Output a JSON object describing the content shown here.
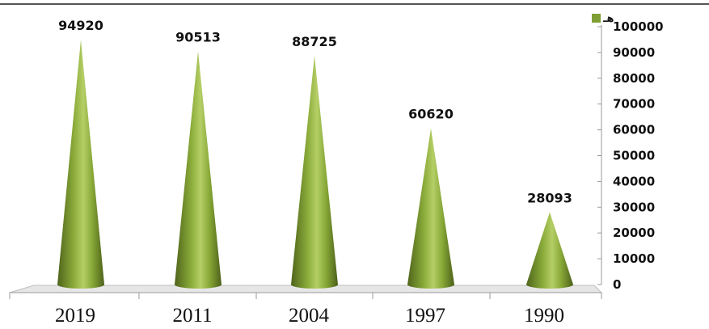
{
  "chart_data": {
    "type": "bar",
    "categories": [
      "2019",
      "2011",
      "2004",
      "1997",
      "1990"
    ],
    "values": [
      94920,
      90513,
      88725,
      60620,
      28093
    ],
    "data_labels": [
      "94920",
      "90513",
      "88725",
      "60620",
      "28093"
    ],
    "ylim": [
      0,
      100000
    ],
    "yticks": [
      "0",
      "10000",
      "20000",
      "30000",
      "40000",
      "50000",
      "60000",
      "70000",
      "80000",
      "90000",
      "100000"
    ],
    "legend": {
      "label": "هـ",
      "placement": "top-right"
    },
    "axis_position": "right",
    "bar_shape": "cone",
    "grid": false,
    "colors": {
      "cone_dark": "#556b1f",
      "cone_mid": "#8fb03e",
      "cone_light": "#b9d36a",
      "floor": "#d9d9d9"
    }
  }
}
